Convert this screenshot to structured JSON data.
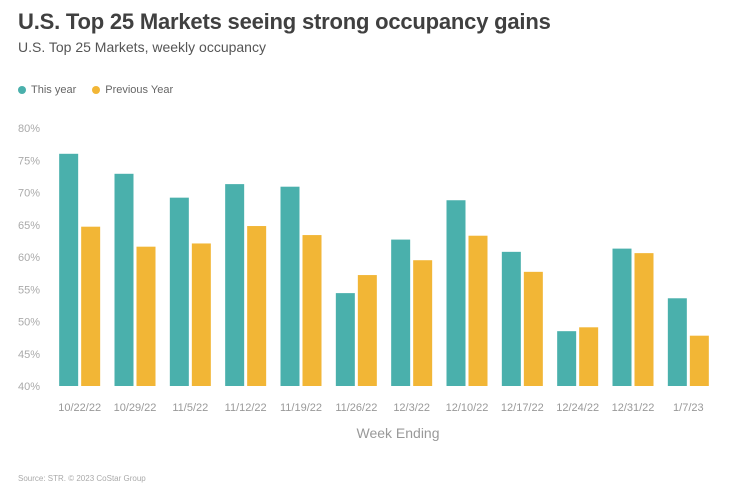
{
  "chart_data": {
    "type": "bar",
    "title": "U.S. Top 25 Markets seeing strong occupancy gains",
    "subtitle": "U.S. Top 25 Markets, weekly occupancy",
    "xlabel": "Week Ending",
    "ylabel": "",
    "ylim": [
      40,
      80
    ],
    "yticks": [
      "40%",
      "45%",
      "50%",
      "55%",
      "60%",
      "65%",
      "70%",
      "75%",
      "80%"
    ],
    "ytick_values": [
      40,
      45,
      50,
      55,
      60,
      65,
      70,
      75,
      80
    ],
    "grid": false,
    "legend_position": "top-left",
    "categories": [
      "10/22/22",
      "10/29/22",
      "11/5/22",
      "11/12/22",
      "11/19/22",
      "11/26/22",
      "12/3/22",
      "12/10/22",
      "12/17/22",
      "12/24/22",
      "12/31/22",
      "1/7/23"
    ],
    "series": [
      {
        "name": "This year",
        "color": "#4ab0ac",
        "values": [
          76.0,
          72.9,
          69.2,
          71.3,
          70.9,
          54.4,
          62.7,
          68.8,
          60.8,
          48.5,
          61.3,
          53.6
        ]
      },
      {
        "name": "Previous Year",
        "color": "#f2b636",
        "values": [
          64.7,
          61.6,
          62.1,
          64.8,
          63.4,
          57.2,
          59.5,
          63.3,
          57.7,
          49.1,
          60.6,
          47.8
        ]
      }
    ]
  },
  "source": "Source: STR. © 2023 CoStar Group"
}
